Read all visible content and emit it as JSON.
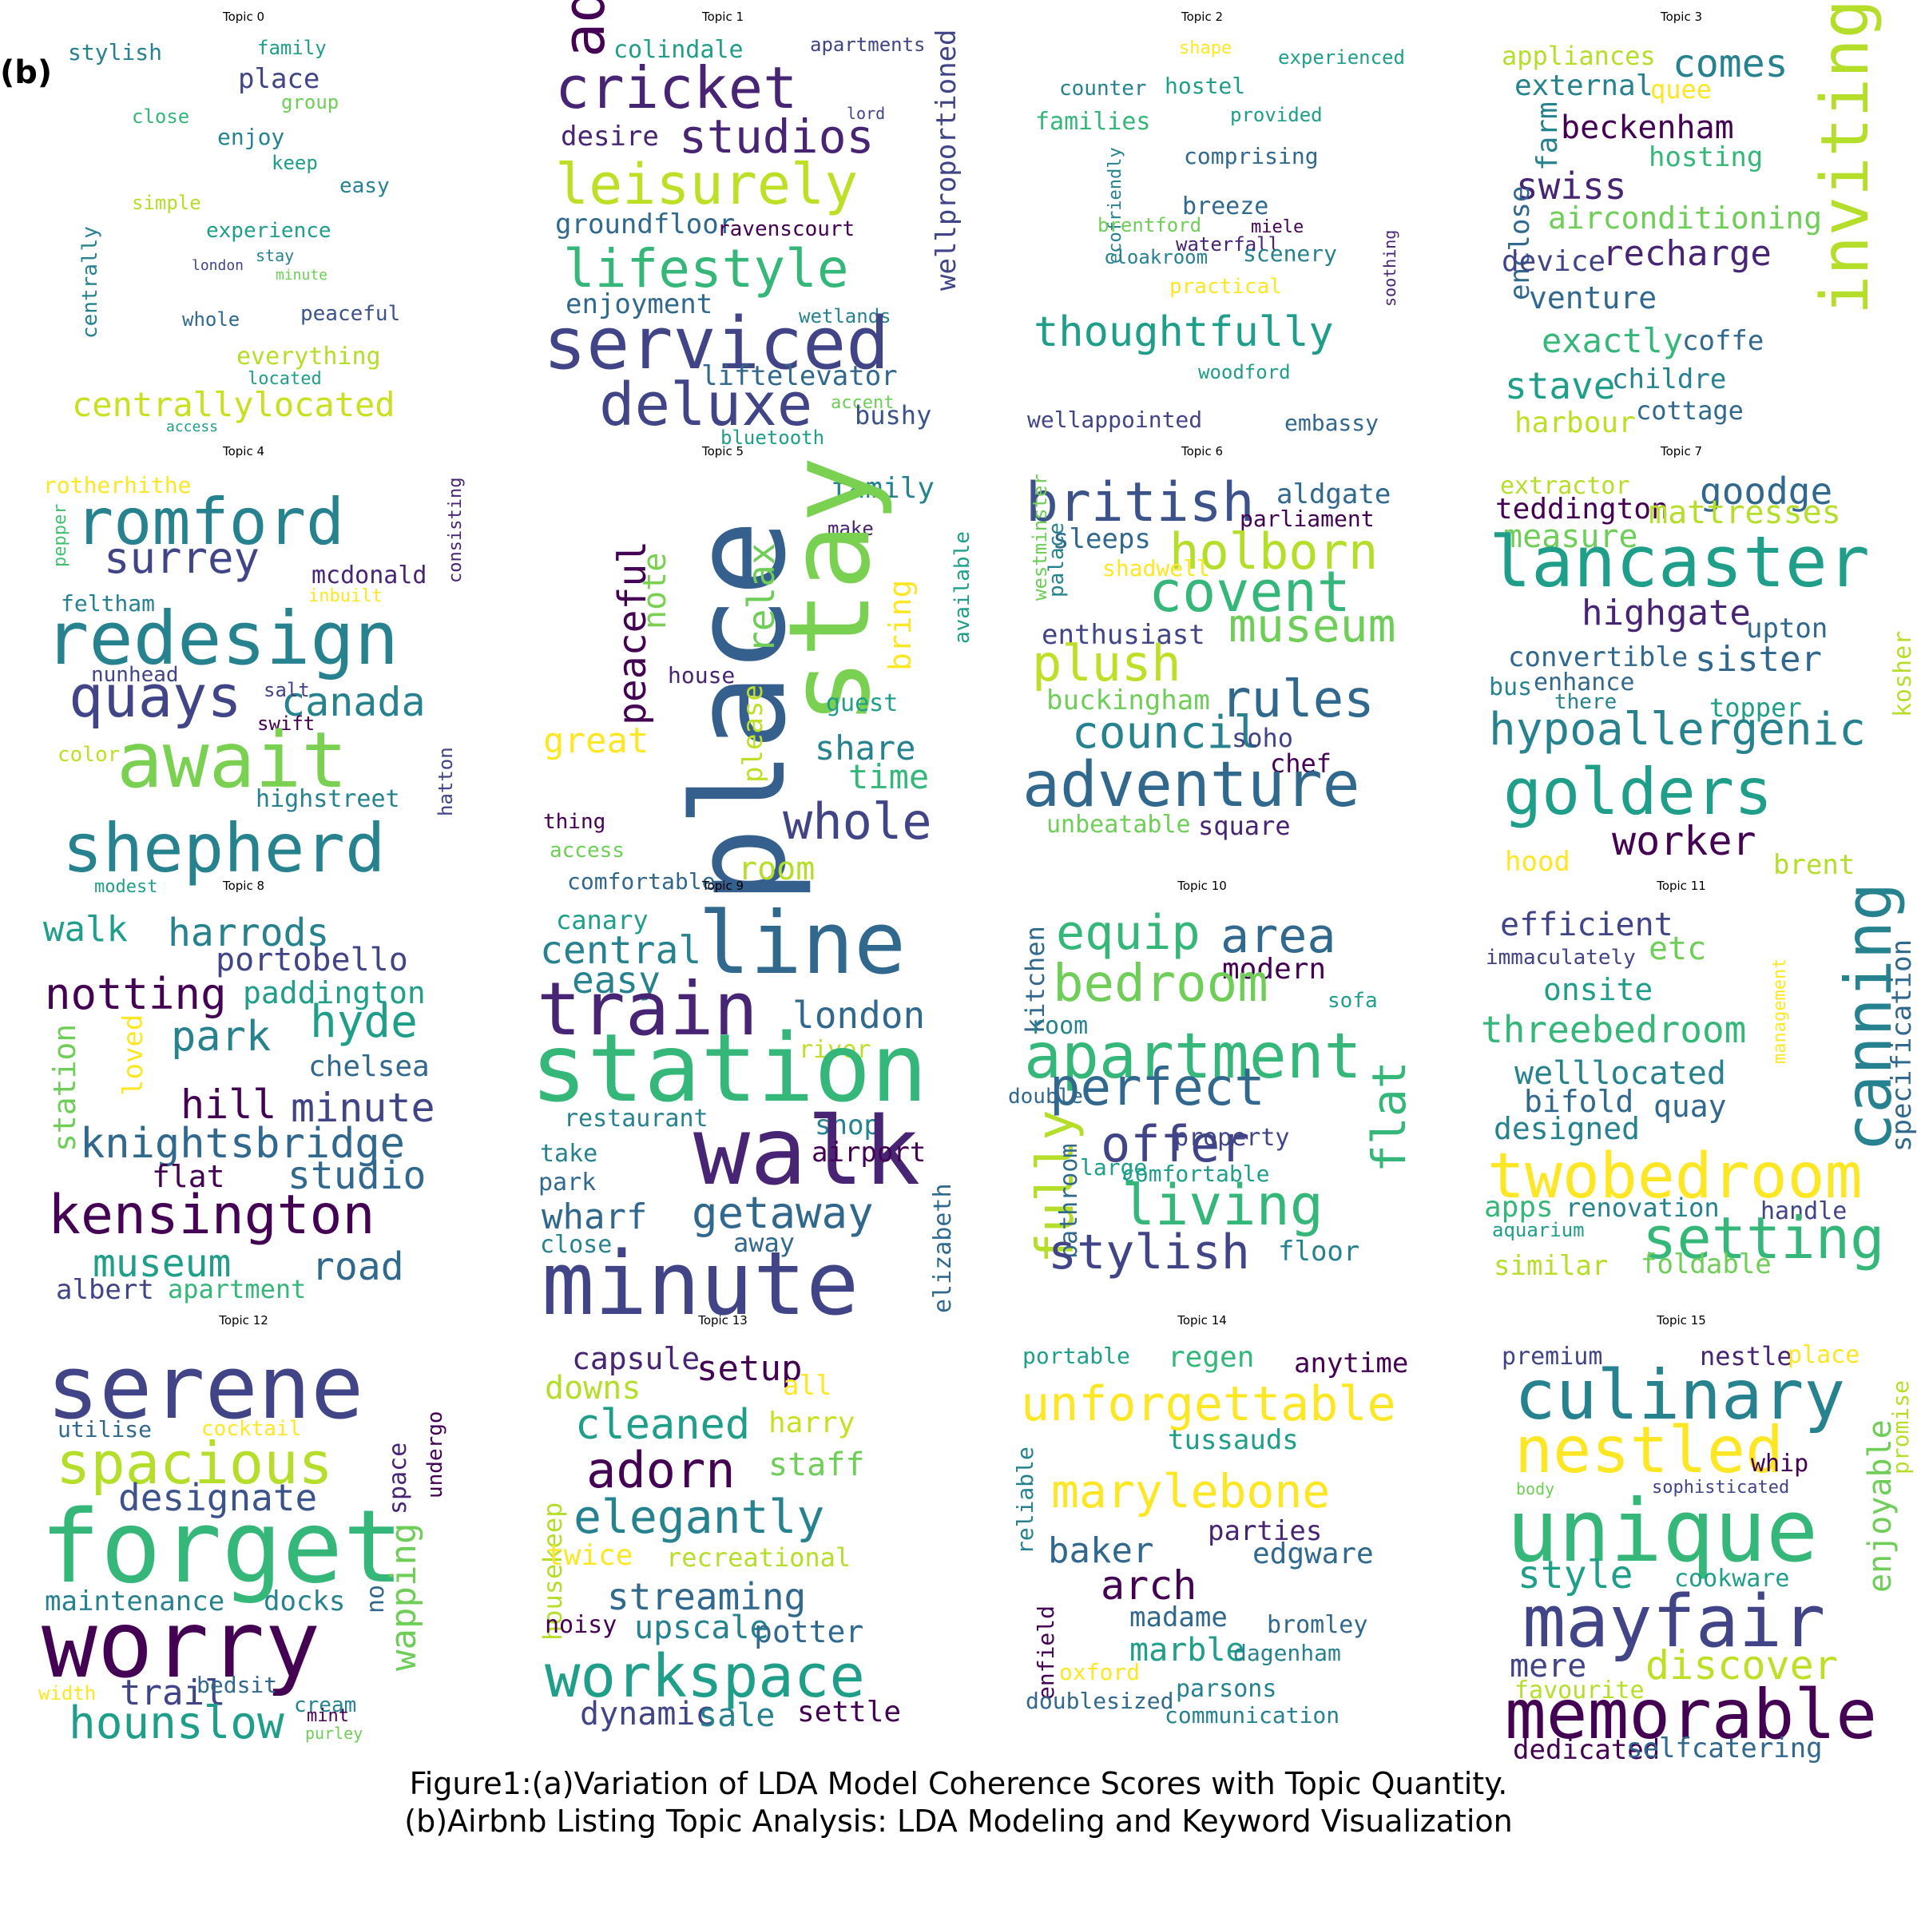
{
  "panel_label": "(b)",
  "caption": {
    "line1": "Figure1:(a)Variation of LDA Model Coherence Scores with Topic Quantity.",
    "line2": "(b)Airbnb Listing Topic Analysis: LDA Modeling and Keyword Visualization"
  },
  "topics": [
    {
      "title": "Topic 0",
      "words": [
        "stylish",
        "family",
        "place",
        "group",
        "close",
        "enjoy",
        "keep",
        "easy",
        "simple",
        "experience",
        "centrally",
        "stay",
        "london",
        "minute",
        "whole",
        "peaceful",
        "everything",
        "located",
        "centrallylocated",
        "access"
      ]
    },
    {
      "title": "Topic 1",
      "words": [
        "colindale",
        "apartments",
        "adjustable",
        "cricket",
        "lord",
        "studios",
        "desire",
        "leisurely",
        "wellproportioned",
        "groundfloor",
        "ravenscourt",
        "lifestyle",
        "enjoyment",
        "wetlands",
        "serviced",
        "liftelevator",
        "deluxe",
        "accent",
        "bushy",
        "bluetooth"
      ]
    },
    {
      "title": "Topic 2",
      "words": [
        "shape",
        "experienced",
        "counter",
        "hostel",
        "families",
        "provided",
        "comprising",
        "ecofriendly",
        "breeze",
        "brentford",
        "miele",
        "cloakroom",
        "waterfall",
        "scenery",
        "soothing",
        "practical",
        "thoughtfully",
        "woodford",
        "wellappointed",
        "embassy"
      ]
    },
    {
      "title": "Topic 3",
      "words": [
        "appliances",
        "comes",
        "external",
        "quee",
        "beckenham",
        "farm",
        "inviting",
        "hosting",
        "swiss",
        "enclose",
        "airconditioning",
        "device",
        "recharge",
        "venture",
        "exactly",
        "coffe",
        "stave",
        "childre",
        "cottage",
        "harbour"
      ]
    },
    {
      "title": "Topic 4",
      "words": [
        "rotherhithe",
        "romford",
        "pepper",
        "surrey",
        "consisting",
        "mcdonald",
        "feltham",
        "inbuilt",
        "redesign",
        "nunhead",
        "quays",
        "canada",
        "salt",
        "swift",
        "await",
        "color",
        "hatton",
        "highstreet",
        "shepherd",
        "modest"
      ]
    },
    {
      "title": "Topic 5",
      "words": [
        "family",
        "make",
        "place",
        "peaceful",
        "note",
        "stay",
        "relax",
        "available",
        "bring",
        "house",
        "guest",
        "please",
        "great",
        "share",
        "time",
        "thing",
        "whole",
        "access",
        "room",
        "comfortable"
      ]
    },
    {
      "title": "Topic 6",
      "words": [
        "british",
        "aldgate",
        "parliament",
        "westminster",
        "sleeps",
        "holborn",
        "palace",
        "shadwell",
        "covent",
        "enthusiast",
        "museum",
        "plush",
        "buckingham",
        "rules",
        "council",
        "soho",
        "chef",
        "adventure",
        "unbeatable",
        "square"
      ]
    },
    {
      "title": "Topic 7",
      "words": [
        "extractor",
        "goodge",
        "teddington",
        "mattresses",
        "measure",
        "lancaster",
        "kosher",
        "highgate",
        "upton",
        "convertible",
        "sister",
        "bus",
        "enhance",
        "there",
        "topper",
        "hypoallergenic",
        "golders",
        "worker",
        "hood",
        "brent"
      ]
    },
    {
      "title": "Topic 8",
      "words": [
        "walk",
        "harrods",
        "portobello",
        "notting",
        "paddington",
        "hyde",
        "park",
        "loved",
        "chelsea",
        "station",
        "hill",
        "minute",
        "knightsbridge",
        "flat",
        "studio",
        "kensington",
        "museum",
        "road",
        "albert",
        "apartment"
      ]
    },
    {
      "title": "Topic 9",
      "words": [
        "canary",
        "line",
        "central",
        "easy",
        "train",
        "london",
        "river",
        "station",
        "restaurant",
        "shop",
        "walk",
        "take",
        "airport",
        "park",
        "wharf",
        "getaway",
        "elizabeth",
        "close",
        "away",
        "minute"
      ]
    },
    {
      "title": "Topic 10",
      "words": [
        "equip",
        "area",
        "kitchen",
        "modern",
        "bedroom",
        "sofa",
        "room",
        "apartment",
        "double",
        "perfect",
        "flat",
        "fully",
        "property",
        "offer",
        "bathroom",
        "large",
        "comfortable",
        "living",
        "stylish",
        "floor"
      ]
    },
    {
      "title": "Topic 11",
      "words": [
        "efficient",
        "management",
        "canning",
        "specification",
        "immaculately",
        "etc",
        "onsite",
        "threebedroom",
        "welllocated",
        "bifold",
        "quay",
        "designed",
        "twobedroom",
        "apps",
        "renovation",
        "handle",
        "aquarium",
        "setting",
        "similar",
        "foldable"
      ]
    },
    {
      "title": "Topic 12",
      "words": [
        "serene",
        "utilise",
        "cocktail",
        "space",
        "undergo",
        "spacious",
        "designate",
        "forget",
        "no",
        "maintenance",
        "docks",
        "wapping",
        "worry",
        "width",
        "trail",
        "bedsit",
        "cream",
        "mint",
        "hounslow",
        "purley"
      ]
    },
    {
      "title": "Topic 13",
      "words": [
        "capsule",
        "setup",
        "downs",
        "all",
        "cleaned",
        "harry",
        "adorn",
        "staff",
        "housekeep",
        "elegantly",
        "twice",
        "recreational",
        "streaming",
        "noisy",
        "upscale",
        "potter",
        "workspace",
        "dynamic",
        "sale",
        "settle"
      ]
    },
    {
      "title": "Topic 14",
      "words": [
        "portable",
        "regen",
        "anytime",
        "unforgettable",
        "tussauds",
        "reliable",
        "marylebone",
        "parties",
        "baker",
        "edgware",
        "arch",
        "enfield",
        "madame",
        "bromley",
        "marble",
        "dagenham",
        "oxford",
        "parsons",
        "doublesized",
        "communication"
      ]
    },
    {
      "title": "Topic 15",
      "words": [
        "premium",
        "nestle",
        "place",
        "culinary",
        "promise",
        "nestled",
        "whip",
        "body",
        "sophisticated",
        "enjoyable",
        "unique",
        "style",
        "cookware",
        "mayfair",
        "mere",
        "discover",
        "favourite",
        "memorable",
        "dedicated",
        "selfcatering"
      ]
    }
  ]
}
